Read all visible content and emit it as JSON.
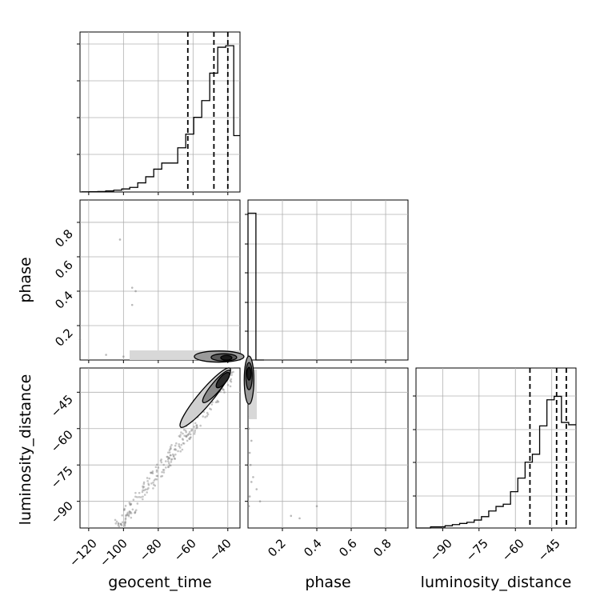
{
  "chart_data": {
    "type": "corner",
    "parameters": [
      "geocent_time",
      "phase",
      "luminosity_distance"
    ],
    "grid": true,
    "line_color": "#000000",
    "scatter_color": "#808080",
    "x_ticks": {
      "geocent_time": [
        -120,
        -100,
        -80,
        -60,
        -40
      ],
      "phase": [
        0.2,
        0.4,
        0.6,
        0.8
      ],
      "luminosity_distance": [
        -90,
        -75,
        -60,
        -45
      ]
    },
    "y_ticks": {
      "phase": [
        0.2,
        0.4,
        0.6,
        0.8
      ],
      "luminosity_distance": [
        -45,
        -60,
        -75,
        -90
      ]
    },
    "tick_labels": {
      "geocent_time_x": [
        "−120",
        "−100",
        "−80",
        "−60",
        "−40"
      ],
      "phase_x": [
        "0.2",
        "0.4",
        "0.6",
        "0.8"
      ],
      "luminosity_distance_x": [
        "−90",
        "−75",
        "−60",
        "−45"
      ],
      "phase_y": [
        "0.8",
        "0.6",
        "0.4",
        "0.2"
      ],
      "luminosity_distance_y": [
        "−45",
        "−60",
        "−75",
        "−90"
      ]
    },
    "axis_labels": {
      "x_bottom": [
        "geocent_time",
        "phase",
        "luminosity_distance"
      ],
      "y_left": [
        "phase",
        "luminosity_distance"
      ]
    },
    "ranges": {
      "geocent_time": [
        -125,
        -33
      ],
      "phase": [
        0,
        0.93
      ],
      "luminosity_distance": [
        -101,
        -35
      ]
    },
    "histograms": {
      "geocent_time": {
        "bin_edges": [
          -124,
          -119.4,
          -114.8,
          -110.2,
          -105.6,
          -101,
          -96.4,
          -91.8,
          -87.2,
          -82.6,
          -78,
          -73.4,
          -68.8,
          -64.2,
          -59.6,
          -55,
          -50.4,
          -45.8,
          -41.2,
          -36.6,
          -32
        ],
        "counts": [
          0.1,
          0.2,
          0.3,
          0.7,
          1.2,
          2,
          3,
          6,
          10,
          15,
          19,
          19,
          29,
          38,
          49,
          60,
          78,
          95,
          96,
          37
        ],
        "quantiles": [
          -63,
          -48,
          -40
        ]
      },
      "phase": {
        "bin_edges": [
          0,
          0.046,
          0.093
        ],
        "counts": [
          100,
          0
        ],
        "quantiles": []
      },
      "luminosity_distance": {
        "bin_edges": [
          -101,
          -98,
          -95,
          -92,
          -89,
          -86,
          -83,
          -80,
          -77,
          -74,
          -71,
          -68,
          -65,
          -62,
          -59,
          -56,
          -53,
          -50,
          -47,
          -44,
          -41,
          -38,
          -35
        ],
        "counts": [
          0,
          0,
          1,
          1,
          2,
          3,
          4,
          5,
          7,
          10,
          15,
          19,
          21,
          32,
          44,
          58,
          65,
          90,
          113,
          116,
          93,
          91
        ],
        "quantiles": [
          -54,
          -43,
          -39
        ]
      }
    },
    "scatter": {
      "geocent_time_vs_phase": {
        "x": [
          -102,
          -95,
          -93,
          -95,
          -125,
          -90,
          -85,
          -80,
          -75,
          -70,
          -110,
          -100,
          -90,
          -80,
          -70
        ],
        "y": [
          0.7,
          0.42,
          0.4,
          0.32,
          0.12,
          0.05,
          0.04,
          0.03,
          0.02,
          0.03,
          0.03,
          0.02,
          0.01,
          0.015,
          0.01
        ]
      },
      "phase_vs_luminosity_distance": {
        "x": [
          0.005,
          0.01,
          0.015,
          0.02,
          0.01,
          0.005,
          0.02,
          0.05,
          0.07,
          0.25,
          0.3,
          0.4,
          0.7,
          0.01,
          0.005,
          0.03
        ],
        "y": [
          -60,
          -70,
          -75,
          -82,
          -88,
          -92,
          -65,
          -85,
          -90,
          -96,
          -97,
          -92,
          -103,
          -55,
          -50,
          -80
        ]
      }
    },
    "contour_centers": {
      "geocent_time_vs_phase": {
        "x": -45,
        "y": 0.02
      },
      "geocent_time_vs_luminosity_distance": {
        "x": -41,
        "y": -38
      },
      "phase_vs_luminosity_distance": {
        "x": 0.006,
        "y": -40
      }
    }
  }
}
